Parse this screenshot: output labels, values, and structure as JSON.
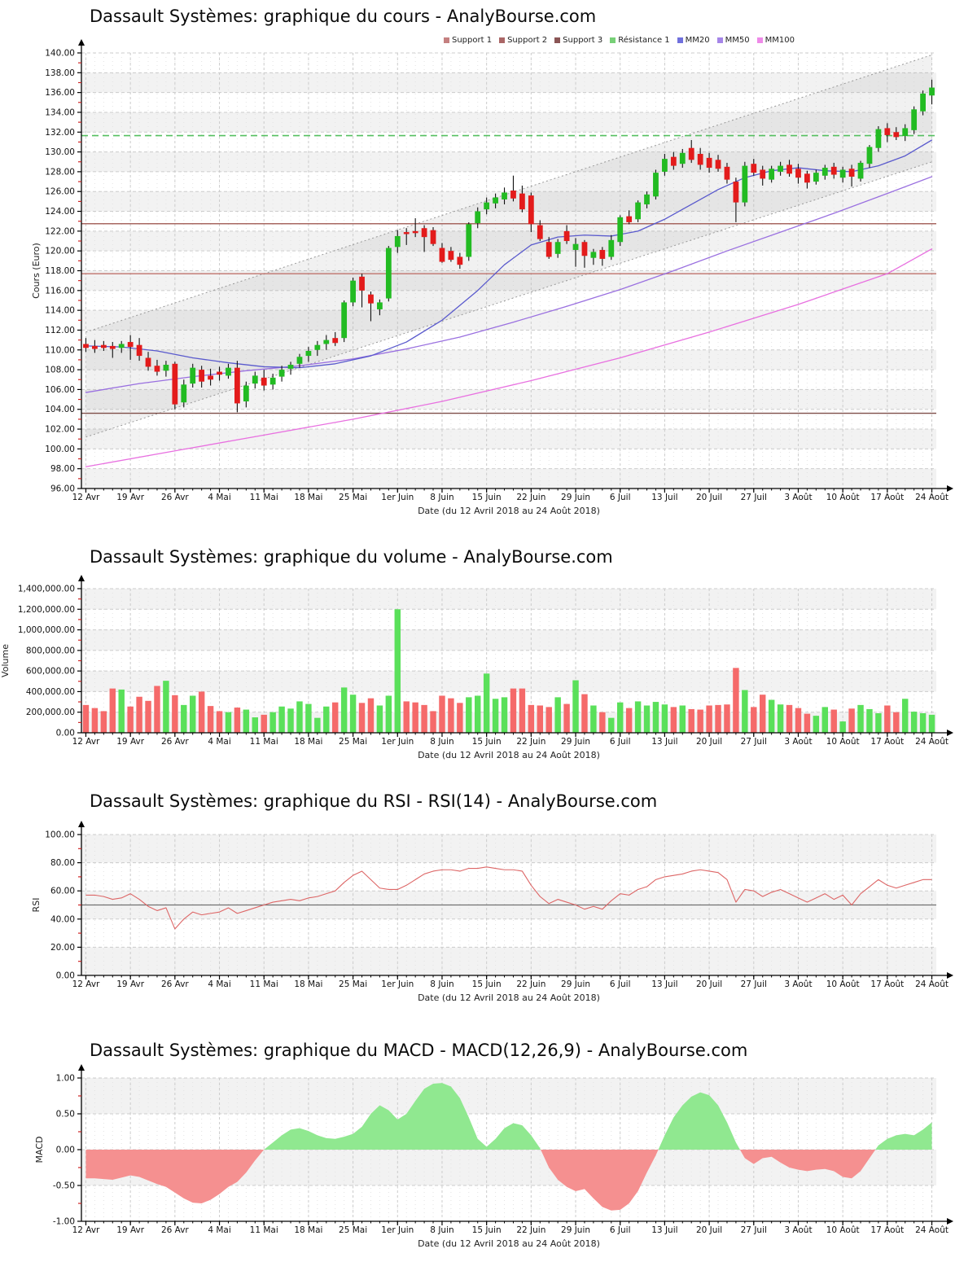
{
  "page": {
    "background": "#ffffff"
  },
  "x_axis": {
    "label": "Date (du 12 Avril 2018 au 24 Août 2018)",
    "tick_labels": [
      "12 Avr",
      "19 Avr",
      "26 Avr",
      "4 Mai",
      "11 Mai",
      "18 Mai",
      "25 Mai",
      "1er Juin",
      "8 Juin",
      "15 Juin",
      "22 Juin",
      "29 Juin",
      "6 Juil",
      "13 Juil",
      "20 Juil",
      "27 Juil",
      "3 Août",
      "10 Août",
      "17 Août",
      "24 Août"
    ],
    "tick_every": 5,
    "n_points": 96
  },
  "charts": {
    "price": {
      "title": "Dassault Systèmes: graphique du cours - AnalyBourse.com",
      "y_label": "Cours (Euro)",
      "y_min": 96,
      "y_max": 140,
      "y_step": 2,
      "y_tick_labels": [
        "96.00",
        "98.00",
        "100.00",
        "102.00",
        "104.00",
        "106.00",
        "108.00",
        "110.00",
        "112.00",
        "114.00",
        "116.00",
        "118.00",
        "120.00",
        "122.00",
        "124.00",
        "126.00",
        "128.00",
        "130.00",
        "132.00",
        "134.00",
        "136.00",
        "138.00",
        "140.00"
      ],
      "legend": [
        {
          "label": "Support 1",
          "color": "#c58080"
        },
        {
          "label": "Support 2",
          "color": "#aa6666"
        },
        {
          "label": "Support 3",
          "color": "#8a5555"
        },
        {
          "label": "Résistance 1",
          "color": "#77d077"
        },
        {
          "label": "MM20",
          "color": "#7070dd"
        },
        {
          "label": "MM50",
          "color": "#a585e8"
        },
        {
          "label": "MM100",
          "color": "#ee8ae8"
        }
      ]
    },
    "volume": {
      "title": "Dassault Systèmes: graphique du volume - AnalyBourse.com",
      "y_label": "Volume",
      "y_min": 0,
      "y_max": 1400000,
      "y_step": 200000,
      "y_tick_labels": [
        "0.00",
        "200,000.00",
        "400,000.00",
        "600,000.00",
        "800,000.00",
        "1,000,000.00",
        "1,200,000.00",
        "1,400,000.00"
      ]
    },
    "rsi": {
      "title": "Dassault Systèmes: graphique du RSI - RSI(14) - AnalyBourse.com",
      "y_label": "RSI",
      "y_min": 0,
      "y_max": 100,
      "y_step": 20,
      "y_tick_labels": [
        "0.00",
        "20.00",
        "40.00",
        "60.00",
        "80.00",
        "100.00"
      ],
      "midline": 50
    },
    "macd": {
      "title": "Dassault Systèmes: graphique du MACD - MACD(12,26,9) - AnalyBourse.com",
      "y_label": "MACD",
      "y_min": -1,
      "y_max": 1,
      "y_step": 0.5,
      "y_tick_labels": [
        "-1.00",
        "-0.50",
        "0.00",
        "0.50",
        "1.00"
      ]
    }
  },
  "chart_data": [
    {
      "type": "candlestick",
      "name": "price",
      "ylim": [
        96,
        140
      ],
      "ohlc": [
        [
          110.6,
          111.2,
          109.8,
          110.2
        ],
        [
          110.4,
          111.0,
          109.7,
          110.1
        ],
        [
          110.5,
          110.9,
          109.9,
          110.2
        ],
        [
          110.4,
          110.8,
          109.2,
          110.1
        ],
        [
          110.2,
          110.9,
          109.7,
          110.6
        ],
        [
          110.8,
          111.5,
          109.0,
          110.3
        ],
        [
          110.5,
          111.2,
          108.9,
          109.4
        ],
        [
          109.2,
          109.8,
          107.9,
          108.3
        ],
        [
          108.4,
          109.0,
          107.4,
          107.8
        ],
        [
          107.9,
          108.9,
          107.3,
          108.5
        ],
        [
          108.6,
          108.8,
          104.0,
          104.5
        ],
        [
          104.7,
          107.0,
          104.2,
          106.5
        ],
        [
          106.6,
          108.6,
          106.2,
          108.2
        ],
        [
          108.0,
          108.4,
          106.2,
          106.8
        ],
        [
          107.4,
          108.1,
          106.4,
          107.0
        ],
        [
          107.8,
          108.3,
          106.9,
          107.5
        ],
        [
          107.4,
          108.6,
          107.1,
          108.2
        ],
        [
          108.2,
          108.9,
          103.7,
          104.6
        ],
        [
          104.8,
          106.8,
          104.2,
          106.4
        ],
        [
          106.6,
          107.8,
          106.1,
          107.4
        ],
        [
          107.2,
          108.0,
          105.9,
          106.4
        ],
        [
          106.5,
          107.6,
          106.0,
          107.2
        ],
        [
          107.3,
          108.4,
          106.8,
          108.0
        ],
        [
          108.1,
          108.8,
          107.5,
          108.5
        ],
        [
          108.6,
          109.6,
          108.2,
          109.3
        ],
        [
          109.4,
          110.3,
          108.8,
          109.9
        ],
        [
          110.0,
          110.9,
          109.4,
          110.5
        ],
        [
          110.6,
          111.5,
          110.0,
          111.0
        ],
        [
          111.2,
          111.8,
          110.4,
          110.7
        ],
        [
          111.2,
          115.0,
          110.8,
          114.8
        ],
        [
          114.8,
          117.3,
          114.4,
          117.0
        ],
        [
          117.4,
          117.7,
          114.3,
          116.0
        ],
        [
          115.6,
          115.9,
          112.9,
          114.7
        ],
        [
          114.1,
          115.1,
          113.5,
          114.8
        ],
        [
          115.2,
          120.5,
          114.9,
          120.3
        ],
        [
          120.4,
          122.1,
          119.8,
          121.5
        ],
        [
          121.9,
          122.3,
          120.6,
          121.7
        ],
        [
          122.0,
          123.3,
          121.4,
          121.8
        ],
        [
          122.3,
          122.6,
          119.9,
          121.4
        ],
        [
          122.1,
          122.4,
          120.5,
          120.7
        ],
        [
          120.3,
          120.8,
          118.8,
          118.9
        ],
        [
          120.0,
          120.4,
          118.9,
          119.1
        ],
        [
          119.4,
          119.8,
          118.2,
          118.6
        ],
        [
          119.4,
          122.9,
          119.0,
          122.7
        ],
        [
          122.8,
          124.4,
          122.3,
          124.0
        ],
        [
          124.2,
          125.4,
          123.7,
          124.9
        ],
        [
          124.8,
          125.8,
          124.3,
          125.4
        ],
        [
          125.2,
          126.4,
          124.7,
          125.9
        ],
        [
          126.1,
          127.6,
          125.0,
          125.3
        ],
        [
          125.8,
          126.6,
          123.9,
          124.2
        ],
        [
          125.6,
          125.9,
          121.9,
          122.7
        ],
        [
          122.6,
          123.1,
          121.0,
          121.2
        ],
        [
          120.9,
          121.4,
          119.2,
          119.4
        ],
        [
          119.7,
          121.2,
          119.3,
          120.9
        ],
        [
          122.0,
          122.6,
          120.7,
          121.0
        ],
        [
          120.1,
          121.3,
          118.4,
          120.7
        ],
        [
          120.9,
          121.1,
          118.3,
          119.5
        ],
        [
          119.3,
          120.2,
          118.6,
          119.9
        ],
        [
          120.1,
          120.4,
          118.5,
          119.2
        ],
        [
          119.4,
          121.6,
          119.1,
          121.1
        ],
        [
          120.9,
          123.6,
          120.5,
          123.4
        ],
        [
          123.5,
          124.1,
          122.7,
          122.9
        ],
        [
          123.2,
          125.1,
          122.9,
          124.9
        ],
        [
          124.7,
          126.0,
          124.3,
          125.7
        ],
        [
          125.5,
          128.2,
          125.2,
          127.9
        ],
        [
          128.0,
          129.8,
          127.6,
          129.3
        ],
        [
          129.5,
          130.0,
          128.2,
          128.6
        ],
        [
          128.8,
          130.3,
          128.4,
          129.9
        ],
        [
          130.4,
          131.2,
          128.9,
          129.2
        ],
        [
          129.8,
          130.4,
          128.2,
          128.7
        ],
        [
          129.4,
          129.9,
          127.9,
          128.4
        ],
        [
          129.2,
          129.7,
          128.0,
          128.3
        ],
        [
          128.5,
          128.9,
          126.8,
          127.2
        ],
        [
          127.0,
          127.4,
          122.9,
          124.9
        ],
        [
          124.9,
          129.0,
          124.5,
          128.6
        ],
        [
          128.8,
          129.3,
          127.6,
          127.9
        ],
        [
          128.2,
          128.6,
          126.6,
          127.3
        ],
        [
          127.2,
          128.6,
          126.9,
          128.3
        ],
        [
          128.0,
          129.0,
          127.6,
          128.6
        ],
        [
          128.7,
          129.2,
          127.5,
          127.8
        ],
        [
          128.3,
          128.8,
          126.8,
          127.4
        ],
        [
          127.8,
          128.1,
          126.3,
          126.9
        ],
        [
          127.0,
          128.2,
          126.7,
          127.9
        ],
        [
          127.6,
          128.7,
          127.2,
          128.4
        ],
        [
          128.5,
          128.9,
          127.3,
          127.7
        ],
        [
          127.4,
          128.5,
          126.9,
          128.2
        ],
        [
          128.3,
          128.7,
          126.5,
          127.5
        ],
        [
          127.3,
          129.1,
          127.0,
          128.9
        ],
        [
          128.8,
          130.7,
          128.4,
          130.5
        ],
        [
          130.4,
          132.6,
          130.0,
          132.3
        ],
        [
          132.4,
          132.9,
          131.0,
          131.7
        ],
        [
          132.0,
          132.5,
          131.2,
          131.5
        ],
        [
          131.6,
          132.8,
          131.1,
          132.4
        ],
        [
          132.2,
          134.6,
          131.8,
          134.3
        ],
        [
          134.1,
          136.2,
          133.7,
          135.9
        ],
        [
          135.7,
          137.3,
          134.8,
          136.5
        ]
      ],
      "levels": {
        "resistance1": 131.65,
        "support1": 122.75,
        "support2": 117.7,
        "support3": 103.6
      },
      "channel": {
        "upper": [
          [
            0,
            111.8
          ],
          [
            95,
            139.8
          ]
        ],
        "lower": [
          [
            0,
            101.2
          ],
          [
            95,
            129.0
          ]
        ]
      },
      "mm20": [
        [
          0,
          110.4
        ],
        [
          4,
          110.3
        ],
        [
          8,
          109.9
        ],
        [
          12,
          109.2
        ],
        [
          16,
          108.7
        ],
        [
          20,
          108.3
        ],
        [
          24,
          108.2
        ],
        [
          28,
          108.6
        ],
        [
          32,
          109.4
        ],
        [
          36,
          110.8
        ],
        [
          40,
          113.0
        ],
        [
          44,
          116.0
        ],
        [
          47,
          118.6
        ],
        [
          50,
          120.6
        ],
        [
          53,
          121.4
        ],
        [
          56,
          121.6
        ],
        [
          59,
          121.5
        ],
        [
          62,
          122.0
        ],
        [
          65,
          123.2
        ],
        [
          68,
          124.7
        ],
        [
          71,
          126.2
        ],
        [
          74,
          127.4
        ],
        [
          77,
          128.1
        ],
        [
          80,
          128.4
        ],
        [
          83,
          128.1
        ],
        [
          86,
          128.0
        ],
        [
          89,
          128.6
        ],
        [
          92,
          129.6
        ],
        [
          95,
          131.2
        ]
      ],
      "mm50": [
        [
          0,
          105.7
        ],
        [
          6,
          106.6
        ],
        [
          12,
          107.3
        ],
        [
          18,
          107.9
        ],
        [
          24,
          108.4
        ],
        [
          30,
          109.1
        ],
        [
          36,
          110.1
        ],
        [
          42,
          111.3
        ],
        [
          48,
          112.8
        ],
        [
          54,
          114.4
        ],
        [
          60,
          116.1
        ],
        [
          66,
          118.0
        ],
        [
          72,
          120.0
        ],
        [
          78,
          121.9
        ],
        [
          84,
          123.8
        ],
        [
          90,
          125.8
        ],
        [
          95,
          127.5
        ]
      ],
      "mm100": [
        [
          0,
          98.2
        ],
        [
          10,
          99.8
        ],
        [
          20,
          101.4
        ],
        [
          30,
          103.0
        ],
        [
          40,
          104.8
        ],
        [
          50,
          106.9
        ],
        [
          60,
          109.2
        ],
        [
          70,
          111.8
        ],
        [
          80,
          114.6
        ],
        [
          90,
          117.7
        ],
        [
          95,
          120.2
        ]
      ]
    },
    {
      "type": "bar",
      "name": "volume",
      "ylim": [
        0,
        1400000
      ],
      "values": [
        270000,
        240000,
        210000,
        430000,
        420000,
        255000,
        350000,
        310000,
        455000,
        505000,
        365000,
        270000,
        360000,
        400000,
        260000,
        210000,
        200000,
        245000,
        225000,
        150000,
        175000,
        200000,
        255000,
        235000,
        305000,
        280000,
        145000,
        255000,
        295000,
        440000,
        370000,
        290000,
        335000,
        265000,
        360000,
        1200000,
        305000,
        295000,
        270000,
        210000,
        360000,
        335000,
        290000,
        345000,
        360000,
        575000,
        330000,
        345000,
        430000,
        430000,
        270000,
        265000,
        250000,
        345000,
        280000,
        510000,
        375000,
        265000,
        200000,
        145000,
        295000,
        240000,
        305000,
        265000,
        300000,
        275000,
        250000,
        265000,
        230000,
        225000,
        265000,
        270000,
        275000,
        630000,
        415000,
        250000,
        370000,
        320000,
        275000,
        270000,
        240000,
        185000,
        165000,
        250000,
        225000,
        110000,
        235000,
        270000,
        230000,
        190000,
        265000,
        200000,
        330000,
        205000,
        190000,
        175000
      ]
    },
    {
      "type": "line",
      "name": "rsi",
      "ylim": [
        0,
        100
      ],
      "values": [
        57,
        57,
        56,
        54,
        55,
        58,
        54,
        49,
        46,
        48,
        33,
        40,
        45,
        43,
        44,
        45,
        48,
        44,
        46,
        48,
        50,
        52,
        53,
        54,
        53,
        55,
        56,
        58,
        60,
        66,
        71,
        74,
        68,
        62,
        61,
        61,
        64,
        68,
        72,
        74,
        75,
        75,
        74,
        76,
        76,
        77,
        76,
        75,
        75,
        74,
        64,
        56,
        51,
        54,
        52,
        50,
        47,
        49,
        47,
        53,
        58,
        57,
        61,
        63,
        68,
        70,
        71,
        72,
        74,
        75,
        74,
        73,
        68,
        52,
        61,
        60,
        56,
        59,
        61,
        58,
        55,
        52,
        55,
        58,
        54,
        57,
        50,
        58,
        63,
        68,
        64,
        62,
        64,
        66,
        68,
        68
      ]
    },
    {
      "type": "area",
      "name": "macd",
      "ylim": [
        -1,
        1
      ],
      "values": [
        -0.4,
        -0.4,
        -0.41,
        -0.42,
        -0.39,
        -0.36,
        -0.38,
        -0.43,
        -0.48,
        -0.52,
        -0.6,
        -0.68,
        -0.74,
        -0.75,
        -0.7,
        -0.62,
        -0.52,
        -0.45,
        -0.32,
        -0.15,
        0.0,
        0.1,
        0.2,
        0.28,
        0.3,
        0.26,
        0.2,
        0.16,
        0.15,
        0.18,
        0.22,
        0.32,
        0.5,
        0.62,
        0.55,
        0.42,
        0.5,
        0.68,
        0.85,
        0.92,
        0.93,
        0.88,
        0.72,
        0.45,
        0.15,
        0.04,
        0.15,
        0.3,
        0.37,
        0.34,
        0.2,
        0.02,
        -0.25,
        -0.42,
        -0.52,
        -0.58,
        -0.55,
        -0.68,
        -0.8,
        -0.85,
        -0.84,
        -0.75,
        -0.58,
        -0.32,
        -0.08,
        0.2,
        0.45,
        0.62,
        0.74,
        0.8,
        0.76,
        0.62,
        0.38,
        0.1,
        -0.12,
        -0.2,
        -0.12,
        -0.1,
        -0.18,
        -0.25,
        -0.28,
        -0.3,
        -0.28,
        -0.27,
        -0.3,
        -0.38,
        -0.4,
        -0.3,
        -0.12,
        0.06,
        0.15,
        0.2,
        0.22,
        0.2,
        0.28,
        0.38
      ]
    }
  ],
  "colors": {
    "candle_up": "#22bb22",
    "candle_down": "#e31b1b",
    "wick": "#111111",
    "volume_up": "#5ae05a",
    "volume_down": "#f56a6a",
    "rsi_line": "#dd6666",
    "rsi_mid": "#707070",
    "macd_pos": "#90e890",
    "macd_neg": "#f59090",
    "resistance1": "#55c060",
    "support1": "#a86862",
    "support2": "#c0736c",
    "support3": "#7e4e48",
    "mm20": "#5a5acd",
    "mm50": "#9a70e0",
    "mm100": "#e870e0",
    "channel": "#999999",
    "channel_fill": "rgba(150,150,150,0.13)",
    "stripe": "#f2f2f2",
    "grid": "#cccccc",
    "grid_minor": "#e3e3e3",
    "axis": "#000000",
    "tick_minor": "#cc2222",
    "tick_label": "#111111"
  }
}
